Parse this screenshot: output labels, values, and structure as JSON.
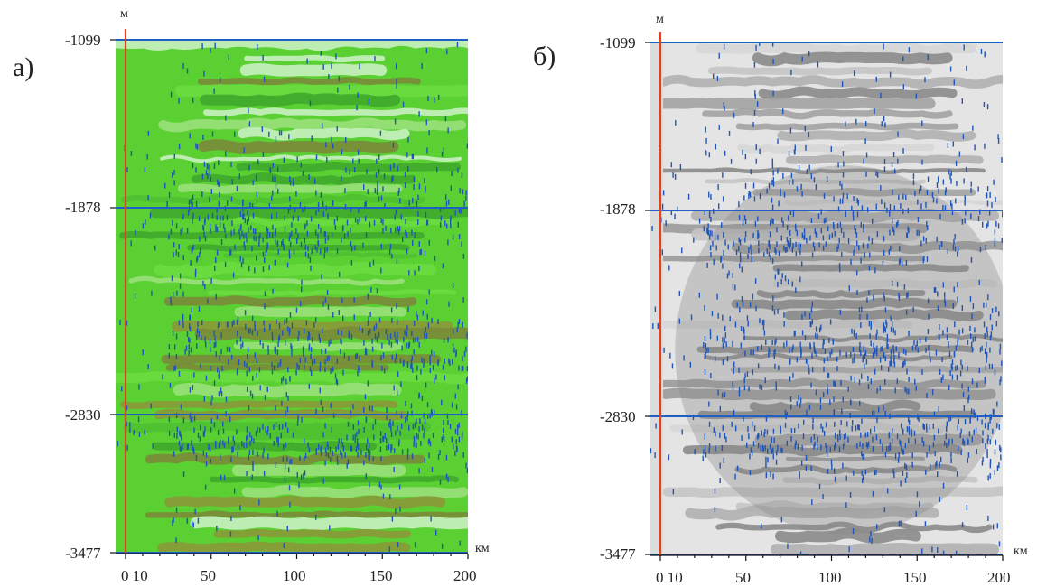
{
  "panels": [
    {
      "label": "а)",
      "palette": "green",
      "y_unit": "м",
      "x_unit": "км",
      "y_ticks": [
        "-1099",
        "-1878",
        "-2830",
        "-3477"
      ],
      "x_ticks": [
        "0 10",
        "50",
        "100",
        "150",
        "200"
      ]
    },
    {
      "label": "б)",
      "palette": "gray",
      "y_unit": "м",
      "x_unit": "км",
      "y_ticks": [
        "-1099",
        "-1878",
        "-2830",
        "-3477"
      ],
      "x_ticks": [
        "0 10",
        "50",
        "100",
        "150",
        "200"
      ]
    }
  ],
  "colors": {
    "green_light": "#c8f0c0",
    "green_mid": "#5ad032",
    "green_dark": "#3fa82c",
    "green_olive": "#7a8a3a",
    "gray_light": "#e4e4e4",
    "gray_mid": "#c4c4c4",
    "gray_dark": "#8a8a8a",
    "horizon_line": "#1f5fc8",
    "well_line": "#e8401c",
    "points": "#1f55b8"
  }
}
